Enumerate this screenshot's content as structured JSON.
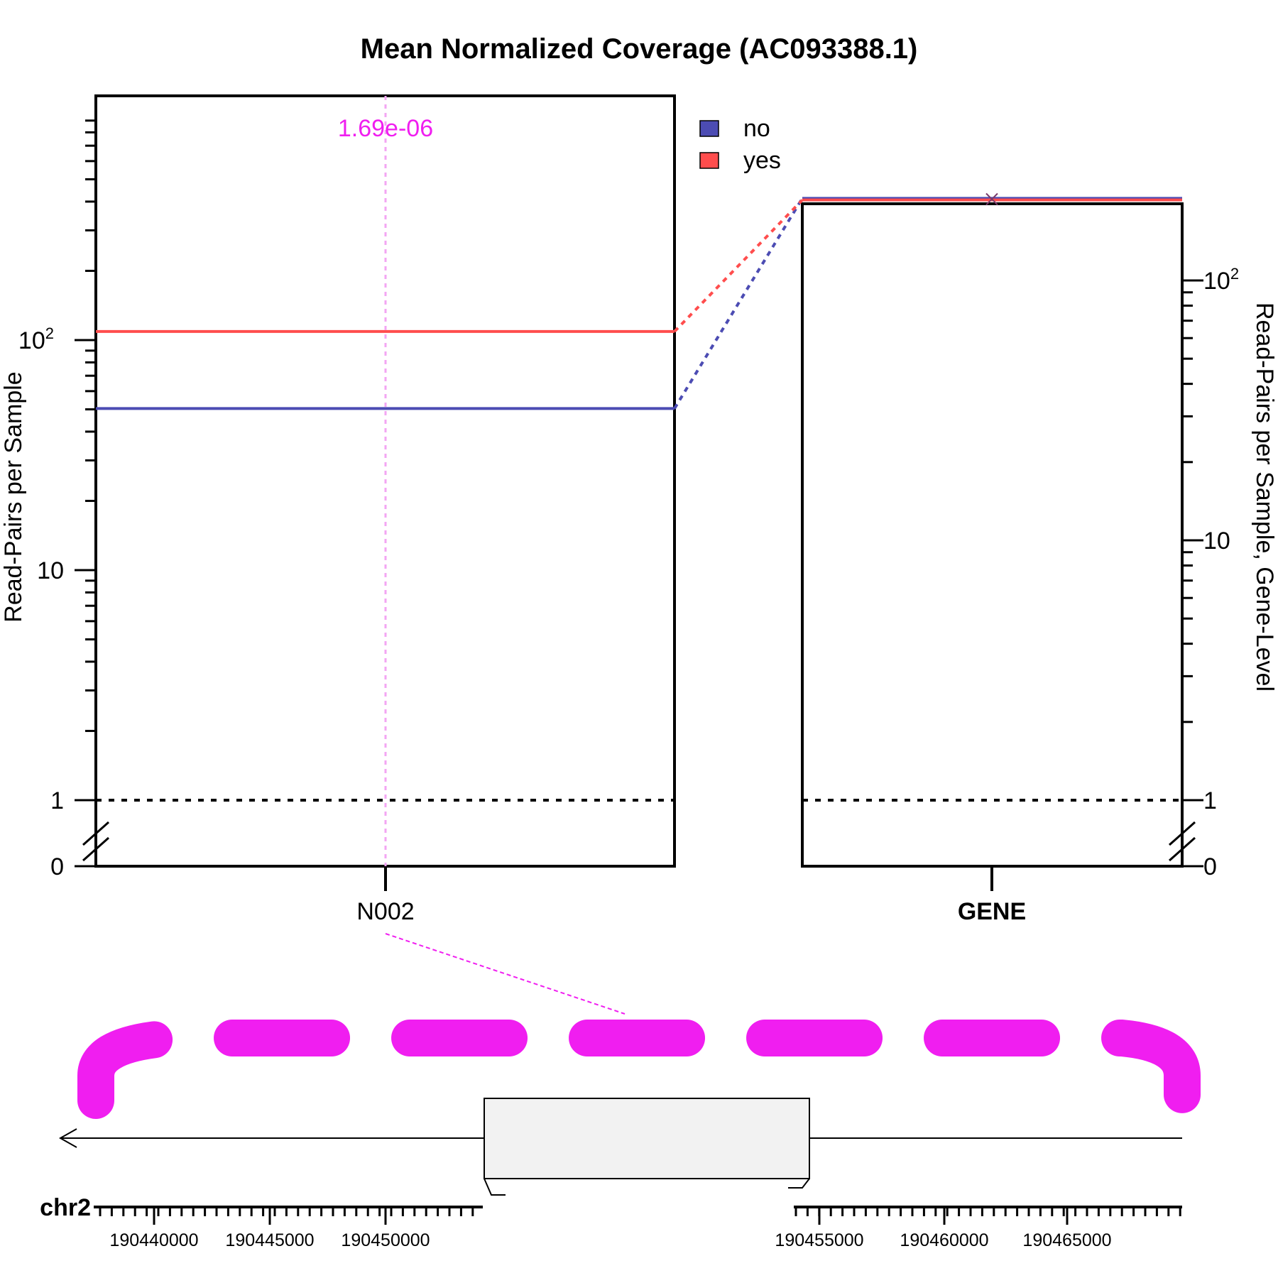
{
  "title": "Mean Normalized Coverage (AC093388.1)",
  "colors": {
    "no": "#4C4CB3",
    "yes": "#FF4D4D",
    "highlight": "#F01EF0",
    "highlight_light": "#F3A6F3",
    "gene_box_fill": "#F2F2F2"
  },
  "chart_data": [
    {
      "type": "line",
      "panel": "junction",
      "ylabel": "Read-Pairs per Sample",
      "yscale": "log",
      "ylim": [
        0,
        135
      ],
      "y_ticks": [
        {
          "value": 0,
          "label": "0"
        },
        {
          "value": 1,
          "label": "1"
        },
        {
          "value": 10,
          "label": "10"
        },
        {
          "value": 100,
          "label": "10",
          "sup": "2"
        }
      ],
      "categories": [
        "N002"
      ],
      "series": [
        {
          "name": "no",
          "values": [
            50.4
          ]
        },
        {
          "name": "yes",
          "values": [
            109
          ]
        }
      ],
      "annotations": [
        {
          "category": "N002",
          "text": "1.69e-06"
        }
      ],
      "reference_line": 1
    },
    {
      "type": "line",
      "panel": "gene",
      "ylabel": "Read-Pairs per Sample, Gene-Level",
      "yscale": "log",
      "ylim": [
        0,
        400
      ],
      "y_ticks": [
        {
          "value": 0,
          "label": "0"
        },
        {
          "value": 1,
          "label": "1"
        },
        {
          "value": 10,
          "label": "10"
        },
        {
          "value": 100,
          "label": "10",
          "sup": "2"
        }
      ],
      "categories": [
        "GENE"
      ],
      "series": [
        {
          "name": "no",
          "values": [
            207
          ]
        },
        {
          "name": "yes",
          "values": [
            204
          ]
        }
      ],
      "reference_line": 1
    }
  ],
  "legend": {
    "position": "top-center",
    "items": [
      {
        "label": "no",
        "color": "#4C4CB3"
      },
      {
        "label": "yes",
        "color": "#FF4D4D"
      }
    ]
  },
  "genome_track": {
    "chromosome": "chr2",
    "strand": "-",
    "tick_labels_left": [
      "190440000",
      "190445000",
      "190450000"
    ],
    "tick_labels_right": [
      "190455000",
      "190460000",
      "190465000"
    ]
  }
}
